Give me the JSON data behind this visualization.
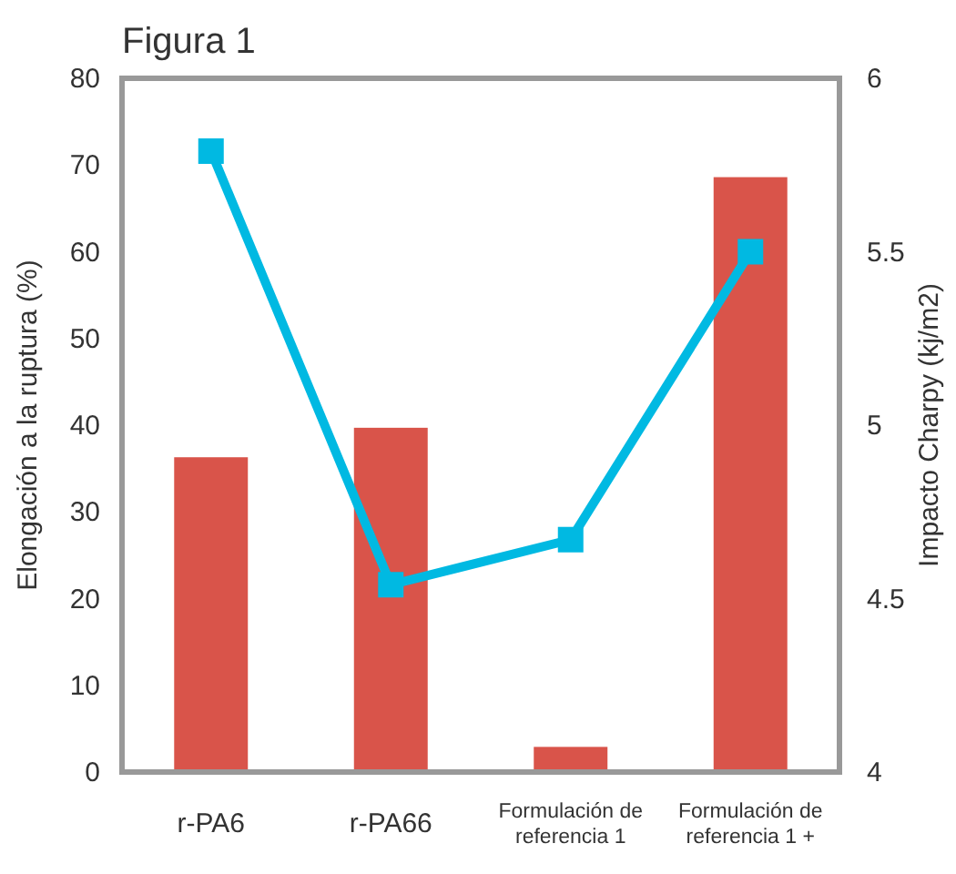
{
  "chart_data": {
    "type": "bar",
    "title": "Figura 1",
    "ylabel": "Elongación a la ruptura (%)",
    "y2label": "Impacto Charpy (kj/m2)",
    "categories": [
      "r-PA6",
      "r-PA66",
      "Formulación de referencia 1",
      "Formulación de referencia 1 +"
    ],
    "series": [
      {
        "color": "#d9544a",
        "values": [
          36.3,
          39.7,
          2.9,
          68.6
        ]
      },
      {
        "type": "line",
        "axis": "y2",
        "color": "#00b9e2",
        "marker": "square",
        "values": [
          5.79,
          4.54,
          4.67,
          5.5
        ]
      }
    ],
    "ylim": [
      0,
      80
    ],
    "yticks": [
      0,
      10,
      20,
      30,
      40,
      50,
      60,
      70,
      80
    ],
    "y2lim": [
      4,
      6
    ],
    "y2ticks": [
      4,
      4.5,
      5,
      5.5,
      6
    ],
    "grid": false
  }
}
